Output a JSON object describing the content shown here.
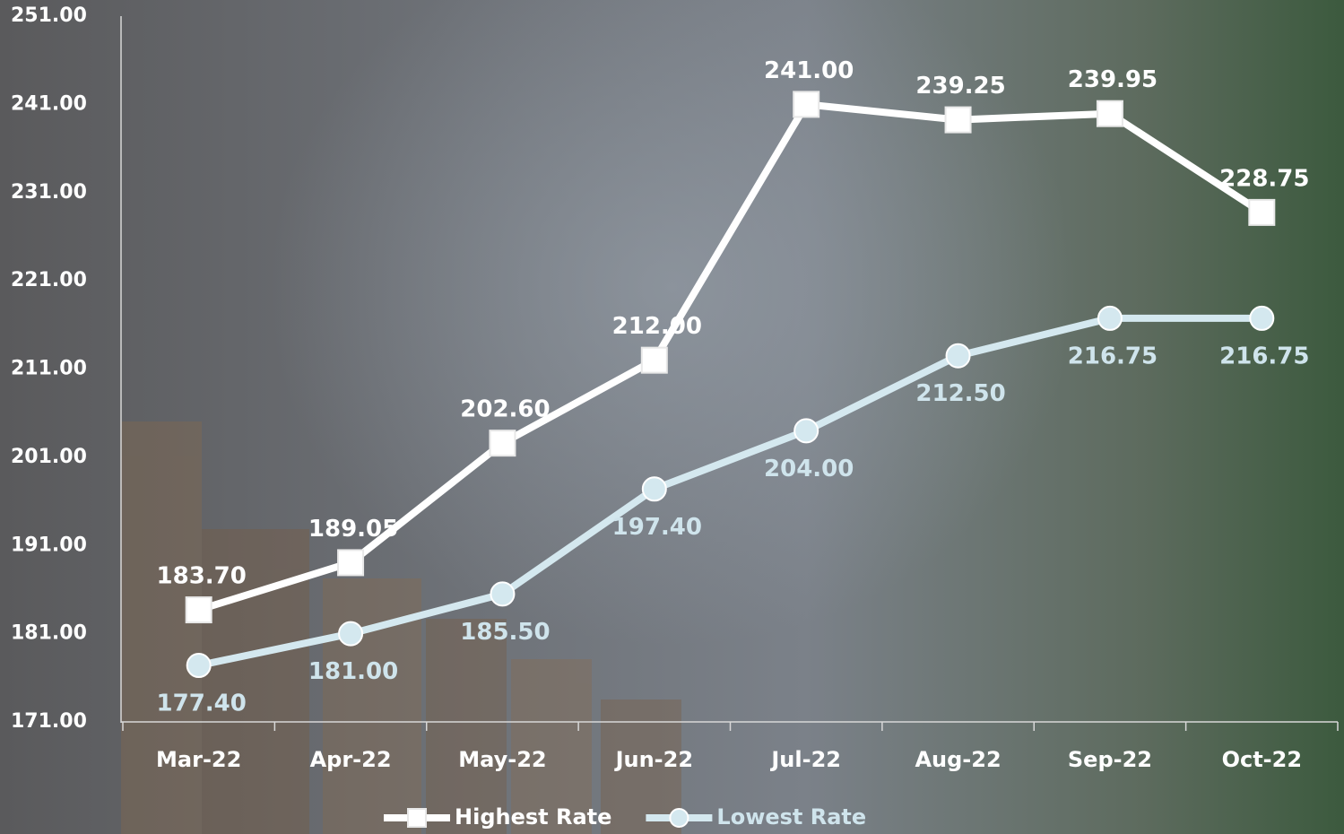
{
  "chart_data": {
    "type": "line",
    "categories": [
      "Mar-22",
      "Apr-22",
      "May-22",
      "Jun-22",
      "Jul-22",
      "Aug-22",
      "Sep-22",
      "Oct-22"
    ],
    "series": [
      {
        "name": "Highest Rate",
        "color": "#ffffff",
        "marker": "square",
        "label_color": "#ffffff",
        "label_position": "above",
        "values": [
          183.7,
          189.05,
          202.6,
          212.0,
          241.0,
          239.25,
          239.95,
          228.75
        ],
        "value_labels": [
          "183.70",
          "189.05",
          "202.60",
          "212.00",
          "241.00",
          "239.25",
          "239.95",
          "228.75"
        ]
      },
      {
        "name": "Lowest Rate",
        "color": "#d4e8ef",
        "marker": "circle",
        "label_color": "#cfe4ec",
        "label_position": "below",
        "values": [
          177.4,
          181.0,
          185.5,
          197.4,
          204.0,
          212.5,
          216.75,
          216.75
        ],
        "value_labels": [
          "177.40",
          "181.00",
          "185.50",
          "197.40",
          "204.00",
          "212.50",
          "216.75",
          "216.75"
        ]
      }
    ],
    "ylim": [
      171,
      251
    ],
    "yticks": [
      {
        "value": 171,
        "label": "171.00"
      },
      {
        "value": 181,
        "label": "181.00"
      },
      {
        "value": 191,
        "label": "191.00"
      },
      {
        "value": 201,
        "label": "201.00"
      },
      {
        "value": 211,
        "label": "211.00"
      },
      {
        "value": 221,
        "label": "221.00"
      },
      {
        "value": 231,
        "label": "231.00"
      },
      {
        "value": 241,
        "label": "241.00"
      },
      {
        "value": 251,
        "label": "251.00"
      }
    ],
    "grid": false,
    "legend": "bottom"
  }
}
